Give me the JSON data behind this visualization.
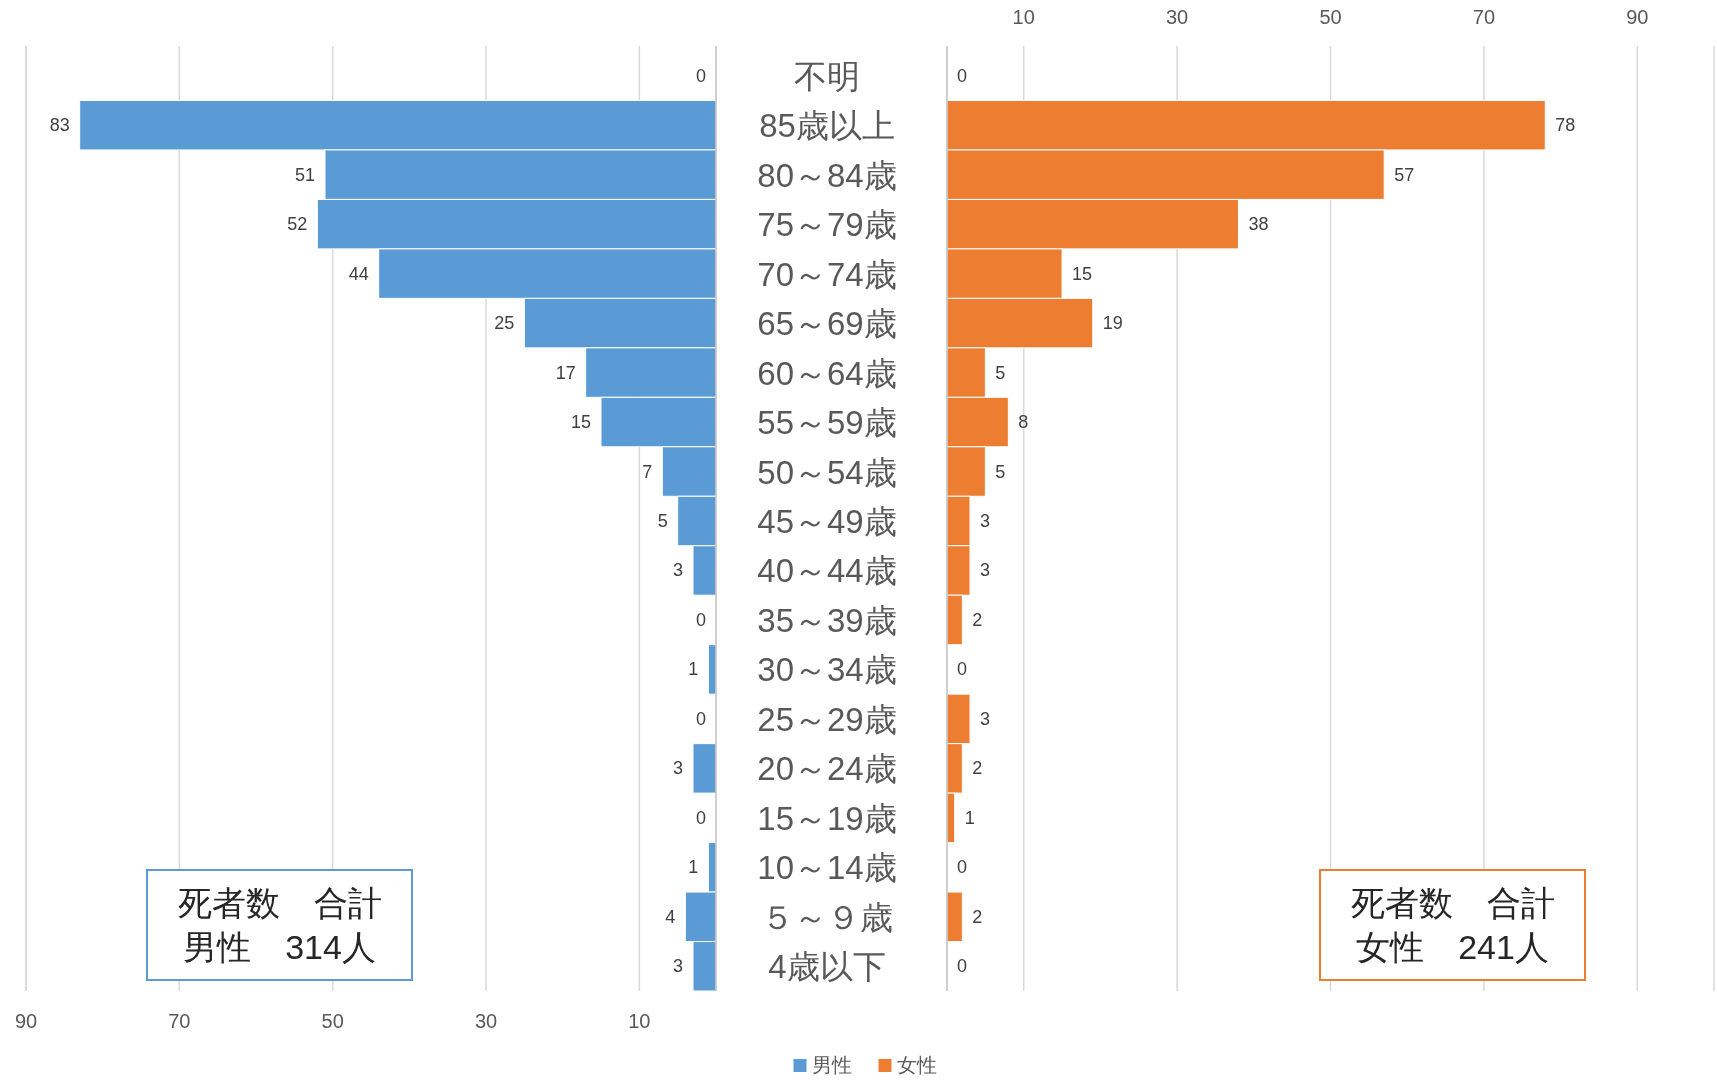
{
  "chart_data": [
    {
      "type": "bar",
      "orientation": "horizontal",
      "series": [
        {
          "name": "男性",
          "color": "#5b9bd5",
          "values": [
            0,
            83,
            51,
            52,
            44,
            25,
            17,
            15,
            7,
            5,
            3,
            0,
            1,
            0,
            3,
            0,
            1,
            4,
            3
          ]
        }
      ],
      "xlim": [
        90,
        0
      ],
      "xticks": [
        90,
        70,
        50,
        30,
        10
      ],
      "grid": true,
      "data_labels": true,
      "tick_labels": "x",
      "legend": "bottom",
      "annotations": [
        "死者数　合計",
        "男性　314人"
      ]
    },
    {
      "type": "bar",
      "orientation": "horizontal",
      "categories": [
        "不明",
        "85歳以上",
        "80～84歳",
        "75～79歳",
        "70～74歳",
        "65～69歳",
        "60～64歳",
        "55～59歳",
        "50～54歳",
        "45～49歳",
        "40～44歳",
        "35～39歳",
        "30～34歳",
        "25～29歳",
        "20～24歳",
        "15～19歳",
        "10～14歳",
        "５～９歳",
        "4歳以下"
      ],
      "series": [
        {
          "name": "女性",
          "color": "#ed7d31",
          "values": [
            0,
            78,
            57,
            38,
            15,
            19,
            5,
            8,
            5,
            3,
            3,
            2,
            0,
            3,
            2,
            1,
            0,
            2,
            0
          ]
        }
      ],
      "xlim": [
        0,
        100
      ],
      "xticks": [
        10,
        30,
        50,
        70,
        90
      ],
      "grid": true,
      "data_labels": true,
      "annotations": [
        "死者数　合計",
        "女性　241人"
      ]
    }
  ]
}
